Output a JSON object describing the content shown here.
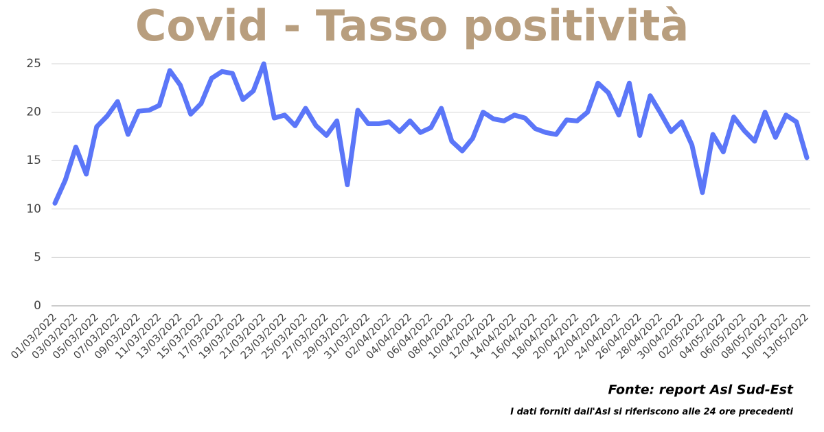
{
  "chart_data": {
    "type": "line",
    "title": "Covid - Tasso positività",
    "categories": [
      "01/03/2022",
      null,
      "03/03/2022",
      null,
      "05/03/2022",
      null,
      "07/03/2022",
      null,
      "09/03/2022",
      null,
      "11/03/2022",
      null,
      "13/03/2022",
      null,
      "15/03/2022",
      null,
      "17/03/2022",
      null,
      "19/03/2022",
      null,
      "21/03/2022",
      null,
      "23/03/2022",
      null,
      "25/03/2022",
      null,
      "27/03/2022",
      null,
      "29/03/2022",
      null,
      "31/03/2022",
      null,
      "02/04/2022",
      null,
      "04/04/2022",
      null,
      "06/04/2022",
      null,
      "08/04/2022",
      null,
      "10/04/2022",
      null,
      "12/04/2022",
      null,
      "14/04/2022",
      null,
      "16/04/2022",
      null,
      "18/04/2022",
      null,
      "20/04/2022",
      null,
      "22/04/2022",
      null,
      "24/04/2022",
      null,
      "26/04/2022",
      null,
      "28/04/2022",
      null,
      "30/04/2022",
      null,
      "02/05/2022",
      null,
      "04/05/2022",
      null,
      "06/05/2022",
      null,
      "08/05/2022",
      null,
      "10/05/2022",
      null,
      "13/05/2022"
    ],
    "series": [
      {
        "name": "Tasso positività",
        "color": "#5b76f8",
        "values": [
          10.6,
          13,
          16.4,
          13.6,
          18.5,
          19.6,
          21.1,
          17.7,
          20.1,
          20.2,
          20.7,
          24.3,
          22.8,
          19.8,
          20.9,
          23.5,
          24.2,
          24,
          21.3,
          22.2,
          25,
          19.4,
          19.7,
          18.6,
          20.4,
          18.6,
          17.6,
          19.1,
          12.5,
          20.2,
          18.8,
          18.8,
          19,
          18,
          19.1,
          17.9,
          18.4,
          20.4,
          17,
          16,
          17.3,
          20,
          19.3,
          19.1,
          19.7,
          19.4,
          18.3,
          17.9,
          17.7,
          19.2,
          19.1,
          20,
          23,
          22,
          19.7,
          23,
          17.6,
          21.7,
          19.9,
          18,
          19,
          16.6,
          11.7,
          17.7,
          15.9,
          19.5,
          18.1,
          17,
          20,
          17.4,
          19.7,
          19,
          15.3
        ]
      }
    ],
    "ylim": [
      0,
      25
    ],
    "yticks": [
      0,
      5,
      10,
      15,
      20,
      25
    ],
    "grid": true,
    "annotations": [
      "Fonte: report Asl Sud-Est",
      "I dati forniti dall'Asl si riferiscono alle 24 ore precedenti"
    ]
  }
}
